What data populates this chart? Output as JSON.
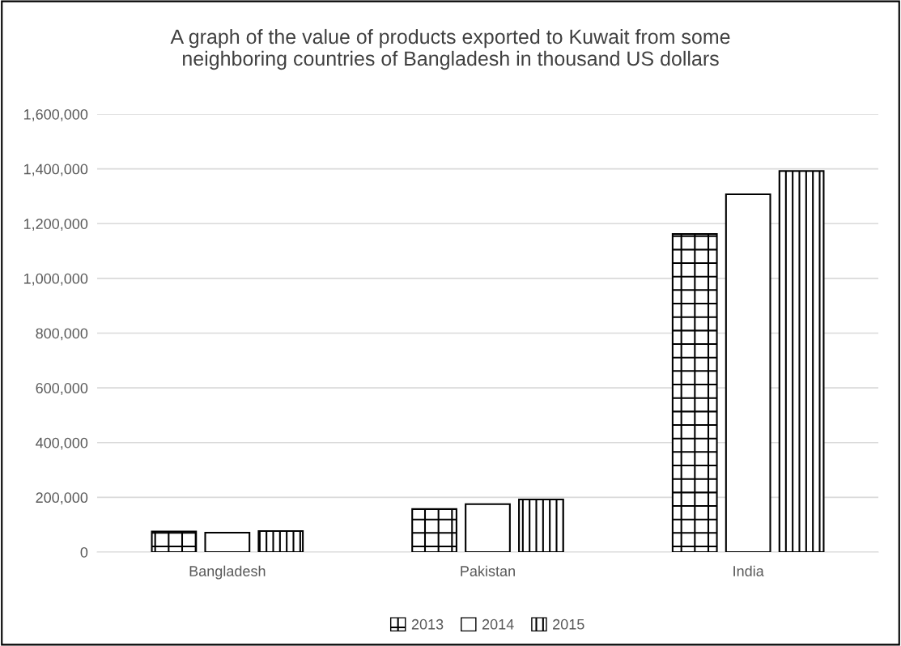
{
  "chart_data": {
    "type": "bar",
    "title": "A graph of the value of products exported to Kuwait from some\nneighboring countries of Bangladesh in thousand US dollars",
    "categories": [
      "Bangladesh",
      "Pakistan",
      "India"
    ],
    "series": [
      {
        "name": "2013",
        "color": "#000000",
        "values": [
          75000,
          157000,
          1162000
        ]
      },
      {
        "name": "2014",
        "color": "#000000",
        "values": [
          71000,
          175000,
          1307000
        ]
      },
      {
        "name": "2015",
        "color": "#000000",
        "values": [
          77000,
          192000,
          1392000
        ]
      }
    ],
    "ylim": [
      0,
      1600000
    ],
    "yticks": [
      {
        "value": 0,
        "label": "0"
      },
      {
        "value": 200000,
        "label": "200,000"
      },
      {
        "value": 400000,
        "label": "400,000"
      },
      {
        "value": 600000,
        "label": "600,000"
      },
      {
        "value": 800000,
        "label": "800,000"
      },
      {
        "value": 1000000,
        "label": "1,000,000"
      },
      {
        "value": 1200000,
        "label": "1,200,000"
      },
      {
        "value": 1400000,
        "label": "1,400,000"
      },
      {
        "value": 1600000,
        "label": "1,600,000"
      }
    ],
    "grid": "y",
    "legend": "bottom"
  }
}
